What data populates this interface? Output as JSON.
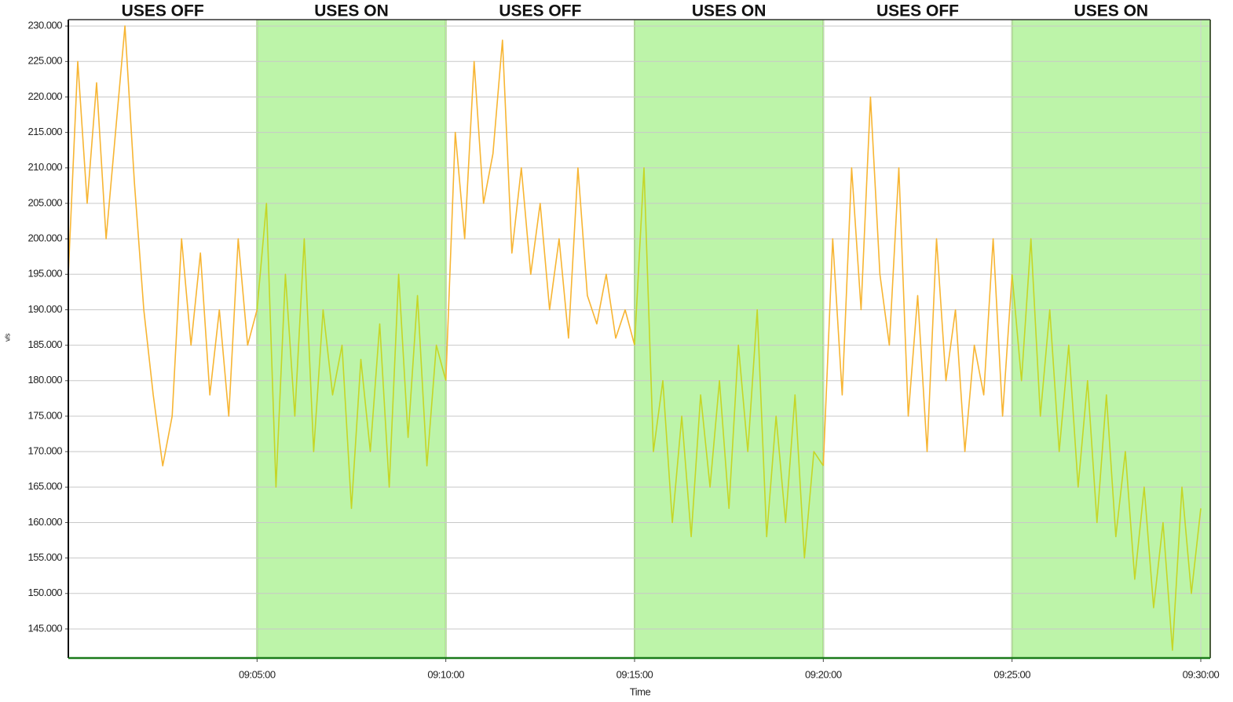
{
  "chart_data": {
    "type": "line",
    "x_label": "Time",
    "y_label": "v/s",
    "x": [
      "09:00:00",
      "09:00:15",
      "09:00:30",
      "09:00:45",
      "09:01:00",
      "09:01:15",
      "09:01:30",
      "09:01:45",
      "09:02:00",
      "09:02:15",
      "09:02:30",
      "09:02:45",
      "09:03:00",
      "09:03:15",
      "09:03:30",
      "09:03:45",
      "09:04:00",
      "09:04:15",
      "09:04:30",
      "09:04:45",
      "09:05:00",
      "09:05:15",
      "09:05:30",
      "09:05:45",
      "09:06:00",
      "09:06:15",
      "09:06:30",
      "09:06:45",
      "09:07:00",
      "09:07:15",
      "09:07:30",
      "09:07:45",
      "09:08:00",
      "09:08:15",
      "09:08:30",
      "09:08:45",
      "09:09:00",
      "09:09:15",
      "09:09:30",
      "09:09:45",
      "09:10:00",
      "09:10:15",
      "09:10:30",
      "09:10:45",
      "09:11:00",
      "09:11:15",
      "09:11:30",
      "09:11:45",
      "09:12:00",
      "09:12:15",
      "09:12:30",
      "09:12:45",
      "09:13:00",
      "09:13:15",
      "09:13:30",
      "09:13:45",
      "09:14:00",
      "09:14:15",
      "09:14:30",
      "09:14:45",
      "09:15:00",
      "09:15:15",
      "09:15:30",
      "09:15:45",
      "09:16:00",
      "09:16:15",
      "09:16:30",
      "09:16:45",
      "09:17:00",
      "09:17:15",
      "09:17:30",
      "09:17:45",
      "09:18:00",
      "09:18:15",
      "09:18:30",
      "09:18:45",
      "09:19:00",
      "09:19:15",
      "09:19:30",
      "09:19:45",
      "09:20:00",
      "09:20:15",
      "09:20:30",
      "09:20:45",
      "09:21:00",
      "09:21:15",
      "09:21:30",
      "09:21:45",
      "09:22:00",
      "09:22:15",
      "09:22:30",
      "09:22:45",
      "09:23:00",
      "09:23:15",
      "09:23:30",
      "09:23:45",
      "09:24:00",
      "09:24:15",
      "09:24:30",
      "09:24:45",
      "09:25:00",
      "09:25:15",
      "09:25:30",
      "09:25:45",
      "09:26:00",
      "09:26:15",
      "09:26:30",
      "09:26:45",
      "09:27:00",
      "09:27:15",
      "09:27:30",
      "09:27:45",
      "09:28:00",
      "09:28:15",
      "09:28:30",
      "09:28:45",
      "09:29:00",
      "09:29:15",
      "09:29:30",
      "09:29:45",
      "09:30:00"
    ],
    "series": [
      {
        "color": "#f7b533",
        "values": [
          195,
          225,
          205,
          222,
          200,
          215,
          230,
          208,
          190,
          178,
          168,
          175,
          200,
          185,
          198,
          178,
          190,
          175,
          200,
          185,
          190,
          null,
          null,
          null,
          null,
          null,
          null,
          null,
          null,
          null,
          null,
          null,
          null,
          null,
          null,
          null,
          null,
          null,
          null,
          null,
          180,
          215,
          200,
          225,
          205,
          212,
          228,
          198,
          210,
          195,
          205,
          190,
          200,
          186,
          210,
          192,
          188,
          195,
          186,
          190,
          185,
          null,
          null,
          null,
          null,
          null,
          null,
          null,
          null,
          null,
          null,
          null,
          null,
          null,
          null,
          null,
          null,
          null,
          null,
          null,
          168,
          200,
          178,
          210,
          190,
          220,
          195,
          185,
          210,
          175,
          192,
          170,
          200,
          180,
          190,
          170,
          185,
          178,
          200,
          175,
          195,
          null,
          null,
          null,
          null,
          null,
          null,
          null,
          null,
          null,
          null,
          null,
          null,
          null,
          null,
          null,
          null,
          null,
          null,
          null,
          null
        ]
      },
      {
        "color": "#c5d626",
        "values": [
          null,
          null,
          null,
          null,
          null,
          null,
          null,
          null,
          null,
          null,
          null,
          null,
          null,
          null,
          null,
          null,
          null,
          null,
          null,
          null,
          190,
          205,
          165,
          195,
          175,
          200,
          170,
          190,
          178,
          185,
          162,
          183,
          170,
          188,
          165,
          195,
          172,
          192,
          168,
          185,
          180,
          null,
          null,
          null,
          null,
          null,
          null,
          null,
          null,
          null,
          null,
          null,
          null,
          null,
          null,
          null,
          null,
          null,
          null,
          null,
          185,
          210,
          170,
          180,
          160,
          175,
          158,
          178,
          165,
          180,
          162,
          185,
          170,
          190,
          158,
          175,
          160,
          178,
          155,
          170,
          168,
          null,
          null,
          null,
          null,
          null,
          null,
          null,
          null,
          null,
          null,
          null,
          null,
          null,
          null,
          null,
          null,
          null,
          null,
          null,
          195,
          180,
          200,
          175,
          190,
          170,
          185,
          165,
          180,
          160,
          178,
          158,
          170,
          152,
          165,
          148,
          160,
          142,
          165,
          150,
          162
        ]
      }
    ],
    "regions": [
      {
        "label": "USES OFF",
        "start": "09:00:00",
        "end": "09:05:00"
      },
      {
        "label": "USES ON",
        "start": "09:05:00",
        "end": "09:10:00",
        "color": "#bdf4a9"
      },
      {
        "label": "USES OFF",
        "start": "09:10:00",
        "end": "09:15:00"
      },
      {
        "label": "USES ON",
        "start": "09:15:00",
        "end": "09:20:00",
        "color": "#bdf4a9"
      },
      {
        "label": "USES OFF",
        "start": "09:20:00",
        "end": "09:25:00"
      },
      {
        "label": "USES ON",
        "start": "09:25:00",
        "end": "09:30:15",
        "color": "#bdf4a9"
      }
    ],
    "xlim": [
      "09:00:00",
      "09:30:15"
    ],
    "xticks": [
      "09:05:00",
      "09:10:00",
      "09:15:00",
      "09:20:00",
      "09:25:00",
      "09:30:00"
    ],
    "ylim": [
      140.9,
      230.9
    ],
    "yticks": [
      {
        "value": 145,
        "label": "145.000"
      },
      {
        "value": 150,
        "label": "150.000"
      },
      {
        "value": 155,
        "label": "155.000"
      },
      {
        "value": 160,
        "label": "160.000"
      },
      {
        "value": 165,
        "label": "165.000"
      },
      {
        "value": 170,
        "label": "170.000"
      },
      {
        "value": 175,
        "label": "175.000"
      },
      {
        "value": 180,
        "label": "180.000"
      },
      {
        "value": 185,
        "label": "185.000"
      },
      {
        "value": 190,
        "label": "190.000"
      },
      {
        "value": 195,
        "label": "195.000"
      },
      {
        "value": 200,
        "label": "200.000"
      },
      {
        "value": 205,
        "label": "205.000"
      },
      {
        "value": 210,
        "label": "210.000"
      },
      {
        "value": 215,
        "label": "215.000"
      },
      {
        "value": 220,
        "label": "220.000"
      },
      {
        "value": 225,
        "label": "225.000"
      },
      {
        "value": 230,
        "label": "230.000"
      }
    ],
    "grid": true
  }
}
